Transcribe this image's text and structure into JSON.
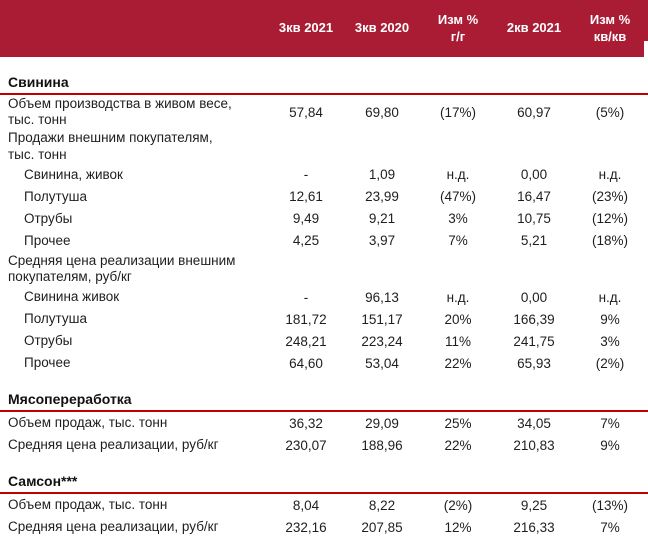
{
  "colors": {
    "header_bg": "#A91C34",
    "section_line": "#C00000",
    "text": "#1E1E1E"
  },
  "header": {
    "columns": [
      "3кв 2021",
      "3кв 2020",
      "Изм %\nг/г",
      "2кв 2021",
      "Изм %\nкв/кв"
    ]
  },
  "sections": [
    {
      "title": "Свинина",
      "rows": [
        {
          "label": "Объем производства в живом весе,\nтыс. тонн",
          "indent": 0,
          "values": [
            "57,84",
            "69,80",
            "(17%)",
            "60,97",
            "(5%)"
          ]
        },
        {
          "label": "Продажи внешним покупателям,\nтыс. тонн",
          "indent": 0,
          "values": [
            "",
            "",
            "",
            "",
            ""
          ]
        },
        {
          "label": "Свинина, живок",
          "indent": 1,
          "values": [
            "-",
            "1,09",
            "н.д.",
            "0,00",
            "н.д."
          ]
        },
        {
          "label": "Полутуша",
          "indent": 1,
          "values": [
            "12,61",
            "23,99",
            "(47%)",
            "16,47",
            "(23%)"
          ]
        },
        {
          "label": "Отрубы",
          "indent": 1,
          "values": [
            "9,49",
            "9,21",
            "3%",
            "10,75",
            "(12%)"
          ]
        },
        {
          "label": "Прочее",
          "indent": 1,
          "values": [
            "4,25",
            "3,97",
            "7%",
            "5,21",
            "(18%)"
          ]
        },
        {
          "label": "Средняя цена реализации внешним\nпокупателям, руб/кг",
          "indent": 0,
          "values": [
            "",
            "",
            "",
            "",
            ""
          ]
        },
        {
          "label": "Свинина живок",
          "indent": 1,
          "values": [
            "-",
            "96,13",
            "н.д.",
            "0,00",
            "н.д."
          ]
        },
        {
          "label": "Полутуша",
          "indent": 1,
          "values": [
            "181,72",
            "151,17",
            "20%",
            "166,39",
            "9%"
          ]
        },
        {
          "label": "Отрубы",
          "indent": 1,
          "values": [
            "248,21",
            "223,24",
            "11%",
            "241,75",
            "3%"
          ]
        },
        {
          "label": "Прочее",
          "indent": 1,
          "values": [
            "64,60",
            "53,04",
            "22%",
            "65,93",
            "(2%)"
          ]
        }
      ]
    },
    {
      "title": "Мясопереработка",
      "rows": [
        {
          "label": "Объем продаж, тыс. тонн",
          "indent": 0,
          "values": [
            "36,32",
            "29,09",
            "25%",
            "34,05",
            "7%"
          ]
        },
        {
          "label": "Средняя цена реализации, руб/кг",
          "indent": 0,
          "values": [
            "230,07",
            "188,96",
            "22%",
            "210,83",
            "9%"
          ]
        }
      ]
    },
    {
      "title": "Самсон***",
      "rows": [
        {
          "label": "Объем продаж, тыс. тонн",
          "indent": 0,
          "values": [
            "8,04",
            "8,22",
            "(2%)",
            "9,25",
            "(13%)"
          ]
        },
        {
          "label": "Средняя цена реализации, руб/кг",
          "indent": 0,
          "values": [
            "232,16",
            "207,85",
            "12%",
            "216,33",
            "7%"
          ]
        }
      ]
    }
  ]
}
